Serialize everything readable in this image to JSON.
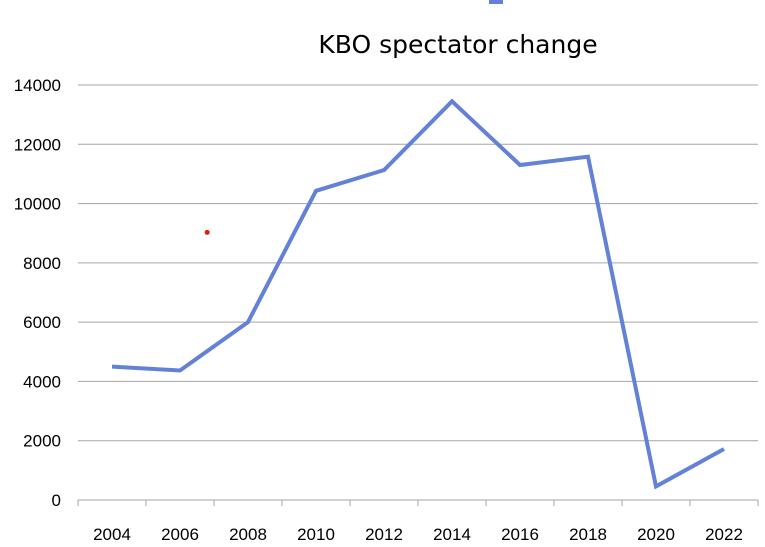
{
  "chart_data": {
    "type": "line",
    "title": "KBO spectator change",
    "xlabel": "",
    "ylabel": "",
    "x": [
      2004,
      2006,
      2008,
      2010,
      2012,
      2014,
      2016,
      2018,
      2020,
      2022
    ],
    "x_tick_labels": [
      "2004",
      "2006",
      "2008",
      "2010",
      "2012",
      "2014",
      "2016",
      "2018",
      "2020",
      "2022"
    ],
    "series": [
      {
        "values": [
          4500,
          4370,
          6000,
          10430,
          11130,
          13450,
          11300,
          11580,
          460,
          1720
        ],
        "color": "#6381d6"
      }
    ],
    "ylim": [
      0,
      14000
    ],
    "y_ticks": [
      0,
      2000,
      4000,
      6000,
      8000,
      10000,
      12000,
      14000
    ],
    "y_tick_labels": [
      "0",
      "2000",
      "4000",
      "6000",
      "8000",
      "10000",
      "12000",
      "14000"
    ],
    "grid": "horizontal",
    "gridline_color": "#a6a6a6",
    "stray_marker": {
      "x": 2006.8,
      "y": 9030,
      "color": "#e81919"
    },
    "legend_swatch_color": "#6381d6"
  }
}
